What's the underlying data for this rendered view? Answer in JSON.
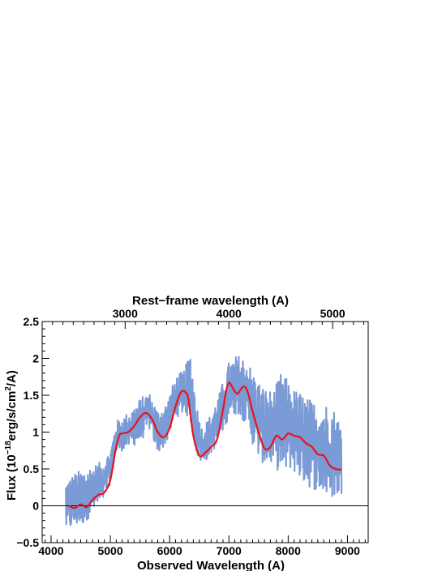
{
  "chart_data": {
    "type": "line",
    "title": "",
    "xlabel": "Observed Wavelength (A)",
    "ylabel_parts": {
      "prefix": "Flux (10",
      "exp1": "−18",
      "middle": "erg/s/cm",
      "exp2": "2",
      "suffix": "/A)"
    },
    "x2label": "Rest−frame wavelength (A)",
    "xlim": [
      3850,
      9350
    ],
    "ylim": [
      -0.5,
      2.5
    ],
    "x_ticks": [
      4000,
      5000,
      6000,
      7000,
      8000,
      9000
    ],
    "y_ticks": [
      -0.5,
      0,
      0.5,
      1,
      1.5,
      2,
      2.5
    ],
    "y_tick_labels": [
      "−0.5",
      "0",
      "0.5",
      "1",
      "1.5",
      "2",
      "2.5"
    ],
    "x2_ticks": [
      3000,
      4000,
      5000
    ],
    "rest_frame_factor": 1.75,
    "zero_line": 0,
    "series": [
      {
        "role": "spectrum",
        "style": "noisy band",
        "color": "#7b9bd6",
        "x": [
          4250,
          4400,
          4550,
          4700,
          4850,
          5000,
          5100,
          5200,
          5350,
          5500,
          5650,
          5800,
          5950,
          6100,
          6250,
          6350,
          6450,
          6550,
          6700,
          6850,
          7000,
          7150,
          7300,
          7450,
          7600,
          7750,
          7900,
          8050,
          8200,
          8350,
          8500,
          8650,
          8800,
          8900
        ],
        "y_low": [
          -0.35,
          -0.3,
          -0.25,
          -0.1,
          0,
          0.3,
          0.7,
          0.75,
          0.8,
          0.85,
          1.05,
          0.7,
          0.85,
          1.2,
          1.25,
          1.15,
          0.7,
          0.55,
          0.7,
          0.9,
          1.2,
          1.25,
          1.1,
          0.7,
          0.55,
          0.55,
          0.4,
          0.5,
          0.35,
          0.25,
          0.2,
          0.1,
          0.1,
          0.15
        ],
        "y_high": [
          0.35,
          0.45,
          0.5,
          0.55,
          0.6,
          0.75,
          1.15,
          1.2,
          1.3,
          1.45,
          1.55,
          1.3,
          1.4,
          1.75,
          1.85,
          2.1,
          1.4,
          1.05,
          1.25,
          1.55,
          1.95,
          2.05,
          2.0,
          1.75,
          1.6,
          1.55,
          1.85,
          1.6,
          1.55,
          1.45,
          1.4,
          1.4,
          1.3,
          1.1
        ]
      },
      {
        "role": "smoothed fit",
        "style": "line",
        "color": "#e8131b",
        "x": [
          4300,
          4400,
          4500,
          4600,
          4700,
          4800,
          4900,
          5000,
          5080,
          5150,
          5200,
          5300,
          5400,
          5500,
          5600,
          5700,
          5800,
          5900,
          6000,
          6100,
          6200,
          6300,
          6350,
          6400,
          6500,
          6600,
          6700,
          6800,
          6900,
          6950,
          7000,
          7050,
          7100,
          7150,
          7200,
          7250,
          7300,
          7350,
          7400,
          7500,
          7600,
          7700,
          7800,
          7900,
          8000,
          8100,
          8200,
          8300,
          8400,
          8500,
          8600,
          8700,
          8800,
          8900
        ],
        "y": [
          0.0,
          -0.03,
          0.02,
          -0.02,
          0.08,
          0.15,
          0.18,
          0.35,
          0.72,
          0.95,
          0.98,
          1.0,
          1.08,
          1.2,
          1.26,
          1.18,
          1.0,
          0.93,
          1.05,
          1.35,
          1.55,
          1.5,
          1.25,
          0.95,
          0.68,
          0.72,
          0.8,
          0.9,
          1.3,
          1.55,
          1.67,
          1.62,
          1.55,
          1.52,
          1.58,
          1.62,
          1.58,
          1.45,
          1.28,
          1.0,
          0.78,
          0.8,
          0.95,
          0.9,
          0.98,
          0.95,
          0.93,
          0.85,
          0.8,
          0.7,
          0.68,
          0.55,
          0.5,
          0.49
        ]
      }
    ]
  }
}
